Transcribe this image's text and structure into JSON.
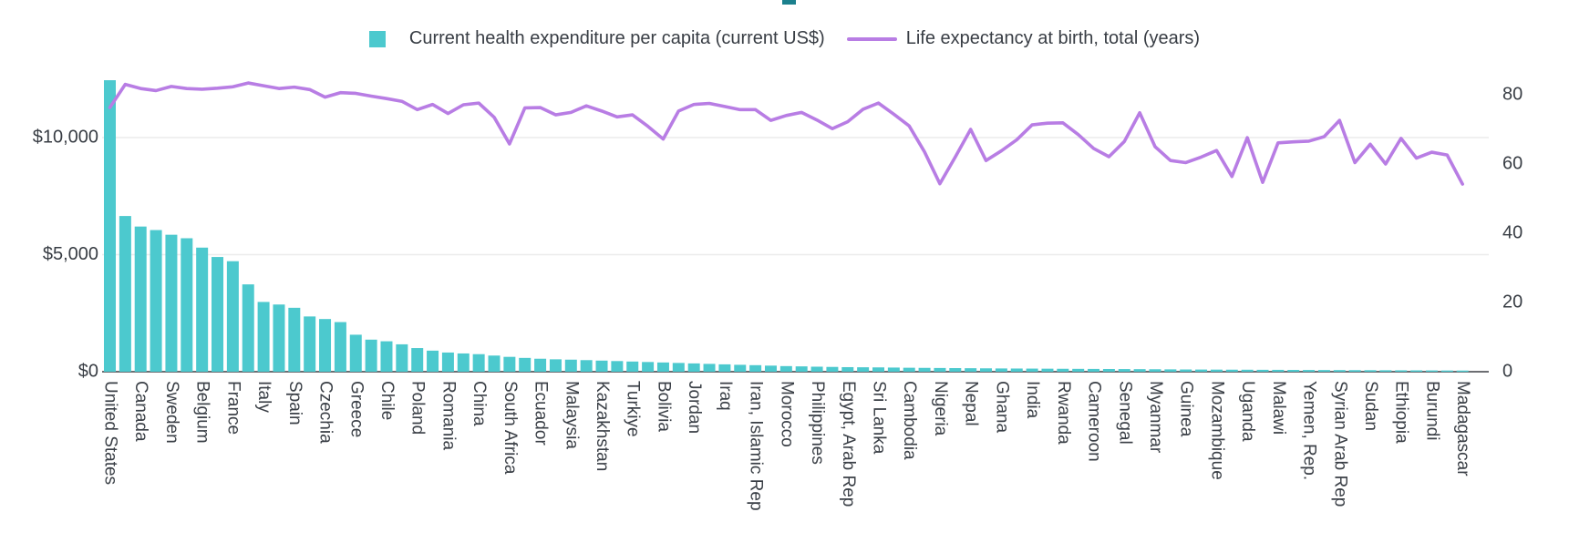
{
  "page": {
    "top_accent_color": "#1b808d",
    "background_color": "#ffffff"
  },
  "legend": {
    "bar_series_label": "Current health expenditure per capita (current US$)",
    "line_series_label": "Life expectancy at birth, total (years)"
  },
  "colors": {
    "bar": "#4cc9ce",
    "line": "#b87de4",
    "grid": "#ececec",
    "axis_line": "#3b3f44",
    "tick_text": "#383d44",
    "category_text": "#3a3f46"
  },
  "chart_data": {
    "type": "combo-bar-line",
    "title": "",
    "xlabel": "",
    "ylabel_left": "Current health expenditure per capita (current US$)",
    "ylabel_right": "Life expectancy at birth, total (years)",
    "grid": "horizontal, left-axis ticks only",
    "legend_position": "top-center",
    "left_axis": {
      "tick_labels": [
        "$0",
        "$5,000",
        "$10,000"
      ],
      "tick_values": [
        0,
        5000,
        10000
      ],
      "ylim": [
        0,
        12800
      ]
    },
    "right_axis": {
      "tick_labels": [
        "0",
        "20",
        "40",
        "60",
        "80"
      ],
      "tick_values": [
        0,
        20,
        40,
        60,
        80
      ],
      "ylim": [
        0,
        86.8
      ]
    },
    "x_tick_note": "every second bar is labeled; empty strings are unlabeled intermediate countries",
    "categories": [
      "United States",
      "",
      "Canada",
      "",
      "Sweden",
      "",
      "Belgium",
      "",
      "France",
      "",
      "Italy",
      "",
      "Spain",
      "",
      "Czechia",
      "",
      "Greece",
      "",
      "Chile",
      "",
      "Poland",
      "",
      "Romania",
      "",
      "China",
      "",
      "South Africa",
      "",
      "Ecuador",
      "",
      "Malaysia",
      "",
      "Kazakhstan",
      "",
      "Turkiye",
      "",
      "Bolivia",
      "",
      "Jordan",
      "",
      "Iraq",
      "",
      "Iran, Islamic Rep",
      "",
      "Morocco",
      "",
      "Philippines",
      "",
      "Egypt, Arab Rep",
      "",
      "Sri Lanka",
      "",
      "Cambodia",
      "",
      "Nigeria",
      "",
      "Nepal",
      "",
      "Ghana",
      "",
      "India",
      "",
      "Rwanda",
      "",
      "Cameroon",
      "",
      "Senegal",
      "",
      "Myanmar",
      "",
      "Guinea",
      "",
      "Mozambique",
      "",
      "Uganda",
      "",
      "Malawi",
      "",
      "Yemen, Rep.",
      "",
      "Syrian Arab Rep",
      "",
      "Sudan",
      "",
      "Ethiopia",
      "",
      "Burundi",
      "",
      "Madagascar"
    ],
    "series": [
      {
        "name": "Current health expenditure per capita (current US$)",
        "type": "bar",
        "axis": "left",
        "color": "#4cc9ce",
        "values": [
          12450,
          6650,
          6200,
          6050,
          5850,
          5700,
          5300,
          4900,
          4720,
          3730,
          2980,
          2870,
          2730,
          2360,
          2250,
          2120,
          1580,
          1370,
          1300,
          1170,
          1010,
          900,
          820,
          780,
          750,
          690,
          635,
          590,
          555,
          530,
          515,
          495,
          475,
          455,
          435,
          415,
          395,
          375,
          355,
          335,
          315,
          295,
          280,
          260,
          240,
          228,
          215,
          205,
          195,
          190,
          185,
          178,
          170,
          165,
          160,
          155,
          150,
          145,
          140,
          137,
          134,
          130,
          126,
          123,
          120,
          117,
          114,
          110,
          106,
          101,
          96,
          93,
          90,
          87,
          85,
          82,
          80,
          77,
          74,
          72,
          70,
          68,
          65,
          63,
          60,
          58,
          55,
          52,
          50
        ]
      },
      {
        "name": "Life expectancy at birth, total (years)",
        "type": "line",
        "axis": "right",
        "color": "#b87de4",
        "values": [
          76.3,
          83.0,
          81.8,
          81.2,
          82.4,
          81.8,
          81.6,
          81.9,
          82.3,
          83.4,
          82.6,
          81.8,
          82.2,
          81.5,
          79.3,
          80.6,
          80.4,
          79.6,
          78.9,
          78.1,
          75.7,
          77.2,
          74.6,
          77.1,
          77.6,
          73.5,
          65.8,
          76.2,
          76.3,
          74.2,
          74.9,
          76.8,
          75.3,
          73.6,
          74.2,
          70.9,
          67.2,
          75.3,
          77.2,
          77.5,
          76.6,
          75.7,
          75.7,
          72.6,
          74.0,
          74.9,
          72.7,
          70.2,
          72.2,
          75.8,
          77.6,
          74.4,
          71.0,
          63.5,
          54.3,
          62.0,
          70.0,
          61.0,
          63.8,
          67.0,
          71.3,
          71.8,
          71.9,
          68.5,
          64.5,
          62.1,
          66.5,
          74.8,
          65.0,
          61.0,
          60.4,
          62.0,
          63.9,
          56.4,
          67.6,
          54.7,
          66.1,
          66.4,
          66.6,
          67.9,
          72.6,
          60.4,
          65.7,
          60.0,
          67.4,
          61.7,
          63.4,
          62.6,
          54.2
        ]
      }
    ]
  }
}
